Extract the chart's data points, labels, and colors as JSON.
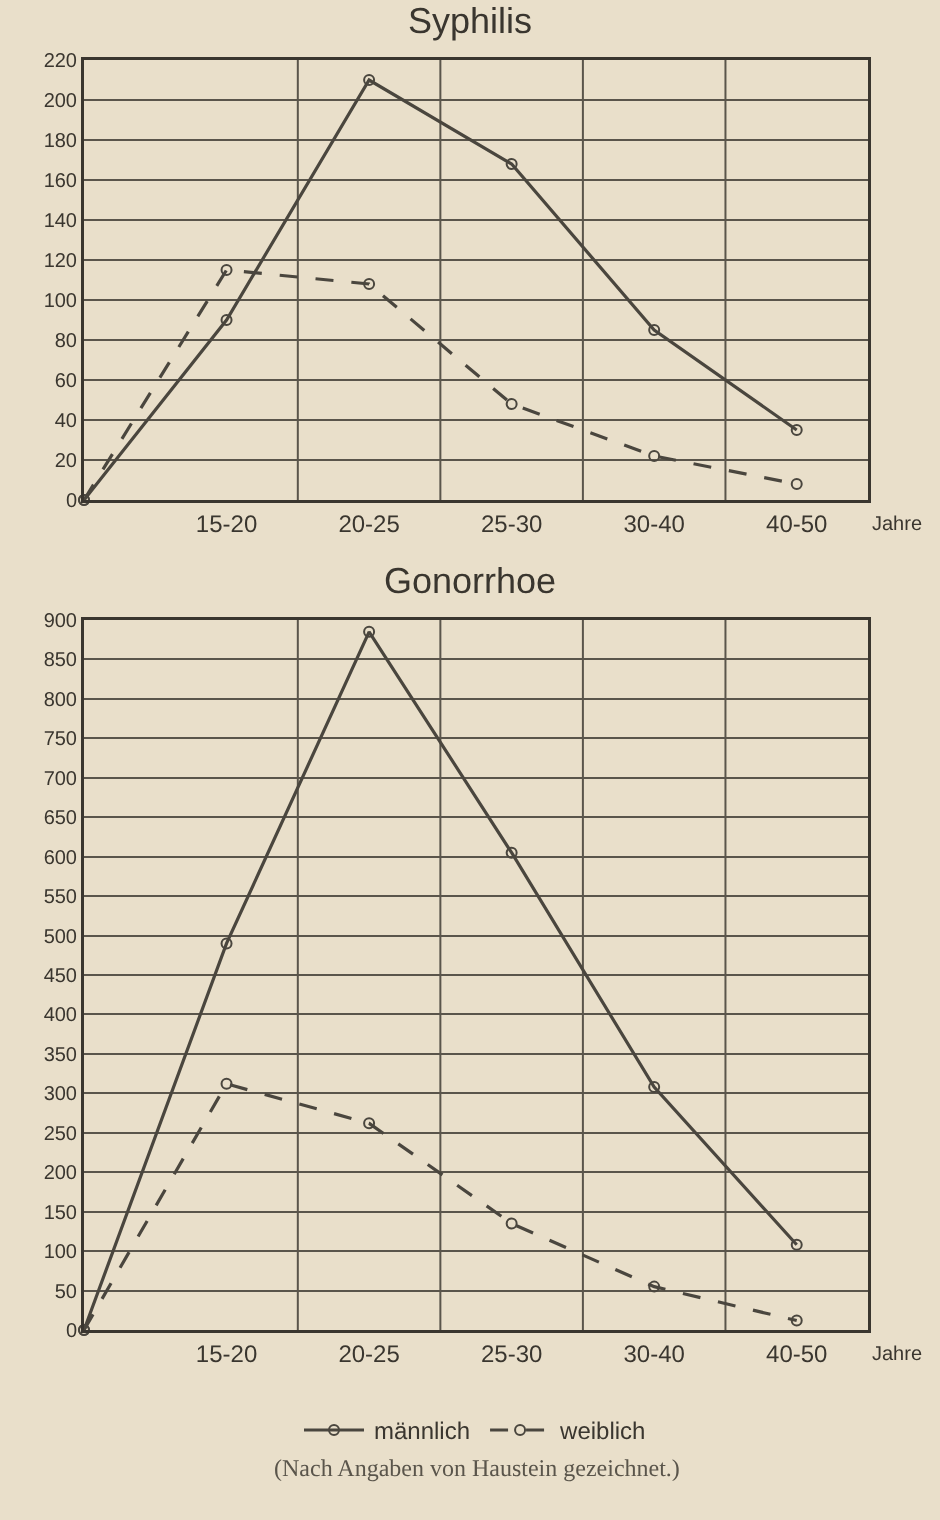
{
  "chart_data": [
    {
      "type": "line",
      "title": "Syphilis",
      "xlabel": "Jahre",
      "categories": [
        null,
        "15-20",
        "20-25",
        "25-30",
        "30-40",
        "40-50"
      ],
      "ylim": [
        0,
        220
      ],
      "yticks": [
        0,
        20,
        40,
        60,
        80,
        100,
        120,
        140,
        160,
        180,
        200,
        220
      ],
      "grid": true,
      "legend": false,
      "marker": "circle",
      "series": [
        {
          "color": "#4a463e",
          "line_style": "solid",
          "values": [
            0,
            90,
            210,
            168,
            85,
            35
          ]
        },
        {
          "color": "#4a463e",
          "line_style": "dashed",
          "values": [
            0,
            115,
            108,
            48,
            22,
            8
          ]
        }
      ]
    },
    {
      "type": "line",
      "title": "Gonorrhoe",
      "xlabel": "Jahre",
      "categories": [
        null,
        "15-20",
        "20-25",
        "25-30",
        "30-40",
        "40-50"
      ],
      "ylim": [
        0,
        900
      ],
      "yticks": [
        0,
        50,
        100,
        150,
        200,
        250,
        300,
        350,
        400,
        450,
        500,
        550,
        600,
        650,
        700,
        750,
        800,
        850,
        900
      ],
      "grid": true,
      "legend": "bottom",
      "marker": "circle",
      "annotations": [
        "(Nach Angaben von Haustein gezeichnet.)"
      ],
      "series": [
        {
          "name": "männlich",
          "color": "#4a463e",
          "line_style": "solid",
          "values": [
            0,
            490,
            885,
            605,
            308,
            108
          ]
        },
        {
          "name": "weiblich",
          "color": "#4a463e",
          "line_style": "dashed",
          "values": [
            0,
            312,
            262,
            135,
            55,
            12
          ]
        }
      ]
    }
  ]
}
